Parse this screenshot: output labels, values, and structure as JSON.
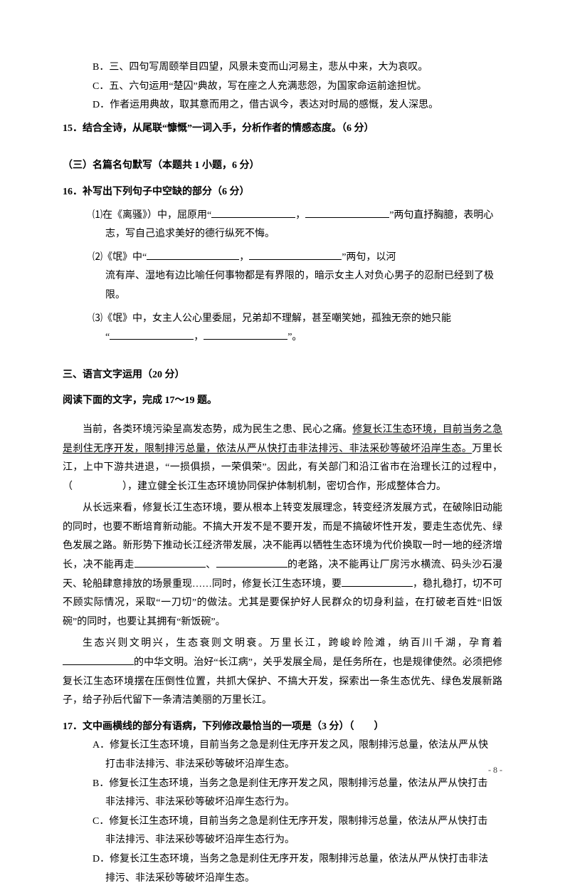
{
  "top_choices": {
    "b": "B．三、四句写周颐举目四望，风景未变而山河易主，悲从中来，大为哀叹。",
    "c": "C．五、六句运用“楚囚”典故，写在座之人充满悲怨，为国家命运前途担忧。",
    "d": "D．作者运用典故，取其意而用之，借古讽今，表达对时局的感慨，发人深思。"
  },
  "q15": "15．结合全诗，从尾联“慷慨”一词入手，分析作者的情感态度。（6 分）",
  "section3_title": "（三）名篇名句默写（本题共 1 小题，6 分）",
  "q16_title": "16．补写出下列句子中空缺的部分（6 分）",
  "q16": {
    "s1a": "⑴在《离骚》）中，屈原用“",
    "s1b": "，",
    "s1c": "”两句直抒胸臆，表明心",
    "s1d": "志，写自己追求美好的德行纵死不悔。",
    "s2a": "⑵《氓》中“",
    "s2b": "，",
    "s2c": "”两句，以河",
    "s2d": "流有岸、湿地有边比喻任何事物都是有界限的，暗示女主人对负心男子的忍耐已经到了极限。",
    "s3a": "⑶《氓》中，女主人公心里委屈，兄弟却不理解，甚至嘲笑她，孤独无奈的她只能",
    "s3b": "“",
    "s3c": "，",
    "s3d": "”。"
  },
  "section_lang_title": "三、语言文字运用（20 分）",
  "reading_title": "阅读下面的文字，完成 17～19 题。",
  "para1_a": "当前，各类环境污染呈高发态势，成为民生之患、民心之痛。",
  "para1_u": "修复长江生态环境，目前当务之急是刹住无序开发，限制排污总量，依法从严从快打击非法排污、非法采砂等破坏沿岸生态。",
  "para1_b": "万里长江，上中下游共进退，“一损俱损，一荣俱荣”。因此，有关部门和沿江省市在治理长江的过程中，（　　　　　），建立健全长江生态环境协同保护体制机制，密切合作，形成整体合力。",
  "para2_a": "从长远来看，修复长江生态环境，要从根本上转变发展理念，转变经济发展方式，在破除旧动能的同时，也要不断培育新动能。不搞大开发不是不要开发，而是不搞破坏性开发，要走生态优先、绿色发展之路。新形势下推动长江经济带发展，决不能再以牺牲生态环境为代价换取一时一地的经济增长，决不能再走",
  "para2_b": "、",
  "para2_c": "的老路，决不能再让厂房污水横流、码头沙石漫天、轮船肆意排放的场景重现……同时，修复长江生态环境，要",
  "para2_d": "，稳扎稳打，切不可不顾实际情况，采取“一刀切”的做法。尤其是要保护好人民群众的切身利益，在打破老百姓“旧饭碗”的同时，也要让其拥有“新饭碗”。",
  "para3_a": "生态兴则文明兴，生态衰则文明衰。万里长江，跨峻岭险滩，纳百川千湖，孕育着",
  "para3_b": "的中华文明。治好“长江病”，关乎发展全局，是任务所在，也是规律使然。必须把修复长江生态环境摆在压倒性位置，共抓大保护、不搞大开发，探索出一条生态优先、绿色发展新路子，给子孙后代留下一条清洁美丽的万里长江。",
  "q17_title": "17．文中画横线的部分有语病，下列修改最恰当的一项是（3 分）（　　）",
  "q17": {
    "a1": "A．修复长江生态环境，目前当务之急是刹住无序开发之风，限制排污总量，依法从严从快",
    "a2": "打击非法排污、非法采砂等破坏沿岸生态。",
    "b1": "B．修复长江生态环境，当务之急是刹住无序开发之风，限制排污总量，依法从严从快打击",
    "b2": "非法排污、非法采砂等破坏沿岸生态行为。",
    "c1": "C．修复长江生态环境，目前当务之急是刹住无序开发，限制排污总量，依法从严从快打击",
    "c2": "非法排污、非法采砂等破坏沿岸生态行为。",
    "d1": "D．修复长江生态环境，当务之急是刹住无序开发，限制排污总量，依法从严从快打击非法",
    "d2": "排污、非法采砂等破坏沿岸生态。"
  },
  "page_number": "- 8 -"
}
